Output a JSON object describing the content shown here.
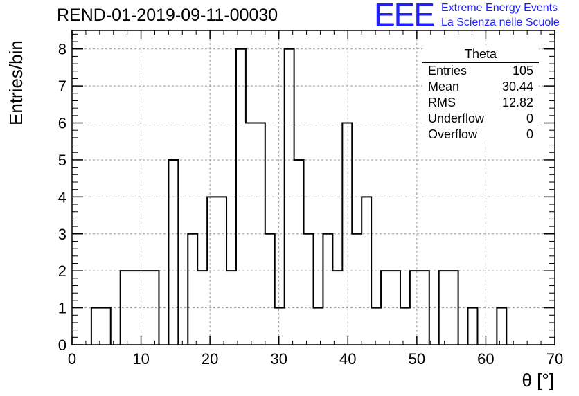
{
  "title": "REND-01-2019-09-11-00030",
  "logo": {
    "mark": "EEE",
    "line1": "Extreme Energy Events",
    "line2": "La Scienza nelle Scuole",
    "color": "#1f1fff"
  },
  "stats": {
    "title": "Theta",
    "rows": [
      {
        "label": "Entries",
        "value": "105"
      },
      {
        "label": "Mean",
        "value": "30.44"
      },
      {
        "label": "RMS",
        "value": "12.82"
      },
      {
        "label": "Underflow",
        "value": "0"
      },
      {
        "label": "Overflow",
        "value": "0"
      }
    ]
  },
  "chart_data": {
    "type": "bar",
    "histogram": true,
    "title": "REND-01-2019-09-11-00030",
    "xlabel": "θ [°]",
    "ylabel": "Entries/bin",
    "xlim": [
      0,
      70
    ],
    "ylim": [
      0,
      8.5
    ],
    "grid": true,
    "bin_edges": [
      0,
      2.8,
      5.6,
      8.4,
      11.2,
      14.0,
      16.8,
      19.6,
      22.4,
      25.2,
      28.0,
      30.8,
      33.6,
      36.4,
      39.2,
      42.0,
      44.8,
      47.6,
      50.4,
      53.2,
      56.0,
      58.8,
      61.6,
      64.4,
      67.2,
      70.0
    ],
    "bins": [
      [
        2.8,
        5.6,
        1
      ],
      [
        7.0,
        9.8,
        2
      ],
      [
        9.8,
        12.6,
        2
      ],
      [
        14.0,
        15.4,
        5
      ],
      [
        16.8,
        18.2,
        3
      ],
      [
        18.2,
        19.6,
        2
      ],
      [
        19.6,
        22.4,
        4
      ],
      [
        22.4,
        23.8,
        2
      ],
      [
        23.8,
        25.2,
        8
      ],
      [
        25.2,
        28.0,
        6
      ],
      [
        28.0,
        29.4,
        3
      ],
      [
        29.4,
        30.8,
        1
      ],
      [
        30.8,
        32.2,
        8
      ],
      [
        32.2,
        33.6,
        5
      ],
      [
        33.6,
        35.0,
        3
      ],
      [
        35.0,
        36.4,
        1
      ],
      [
        36.4,
        37.8,
        3
      ],
      [
        37.8,
        39.2,
        2
      ],
      [
        39.2,
        40.6,
        6
      ],
      [
        40.6,
        42.0,
        3
      ],
      [
        42.0,
        43.4,
        4
      ],
      [
        43.4,
        44.8,
        1
      ],
      [
        44.8,
        47.6,
        2
      ],
      [
        47.6,
        49.0,
        1
      ],
      [
        49.0,
        51.8,
        2
      ],
      [
        53.2,
        56.0,
        2
      ],
      [
        57.4,
        58.8,
        1
      ],
      [
        61.6,
        63.0,
        1
      ]
    ],
    "xticks": [
      0,
      10,
      20,
      30,
      40,
      50,
      60,
      70
    ],
    "yticks": [
      0,
      1,
      2,
      3,
      4,
      5,
      6,
      7,
      8
    ]
  }
}
